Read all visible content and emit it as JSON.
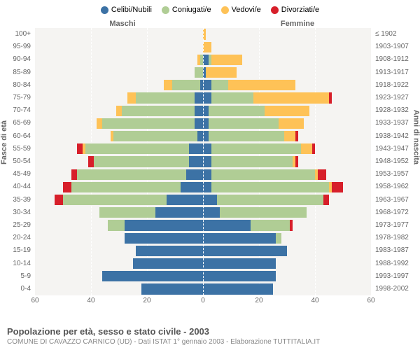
{
  "chart": {
    "type": "population-pyramid",
    "background_color": "#ffffff",
    "plot_bg": "#f5f4f2",
    "grid_color": "#ffffff",
    "font_family": "Arial",
    "x_max": 60,
    "x_tick_step": 20,
    "x_ticks": [
      60,
      40,
      20,
      0,
      20,
      40,
      60
    ],
    "legend": [
      {
        "label": "Celibi/Nubili",
        "color": "#3c72a5"
      },
      {
        "label": "Coniugati/e",
        "color": "#b0cd95"
      },
      {
        "label": "Vedovi/e",
        "color": "#fec257"
      },
      {
        "label": "Divorziati/e",
        "color": "#d71f2a"
      }
    ],
    "gender_labels": {
      "left": "Maschi",
      "right": "Femmine"
    },
    "y_left_title": "Fasce di età",
    "y_right_title": "Anni di nascita",
    "age_groups": [
      "0-4",
      "5-9",
      "10-14",
      "15-19",
      "20-24",
      "25-29",
      "30-34",
      "35-39",
      "40-44",
      "45-49",
      "50-54",
      "55-59",
      "60-64",
      "65-69",
      "70-74",
      "75-79",
      "80-84",
      "85-89",
      "90-94",
      "95-99",
      "100+"
    ],
    "birth_years": [
      "1998-2002",
      "1993-1997",
      "1988-1992",
      "1983-1987",
      "1978-1982",
      "1973-1977",
      "1968-1972",
      "1963-1967",
      "1958-1962",
      "1953-1957",
      "1948-1952",
      "1943-1947",
      "1938-1942",
      "1933-1937",
      "1928-1932",
      "1923-1927",
      "1918-1922",
      "1913-1917",
      "1908-1912",
      "1903-1907",
      "≤ 1902"
    ],
    "male": [
      {
        "s": 22,
        "m": 0,
        "w": 0,
        "d": 0
      },
      {
        "s": 36,
        "m": 0,
        "w": 0,
        "d": 0
      },
      {
        "s": 25,
        "m": 0,
        "w": 0,
        "d": 0
      },
      {
        "s": 24,
        "m": 0,
        "w": 0,
        "d": 0
      },
      {
        "s": 28,
        "m": 0,
        "w": 0,
        "d": 0
      },
      {
        "s": 28,
        "m": 6,
        "w": 0,
        "d": 0
      },
      {
        "s": 17,
        "m": 20,
        "w": 0,
        "d": 0
      },
      {
        "s": 13,
        "m": 37,
        "w": 0,
        "d": 3
      },
      {
        "s": 8,
        "m": 39,
        "w": 0,
        "d": 3
      },
      {
        "s": 6,
        "m": 39,
        "w": 0,
        "d": 2
      },
      {
        "s": 5,
        "m": 34,
        "w": 0,
        "d": 2
      },
      {
        "s": 5,
        "m": 37,
        "w": 1,
        "d": 2
      },
      {
        "s": 2,
        "m": 30,
        "w": 1,
        "d": 0
      },
      {
        "s": 3,
        "m": 33,
        "w": 2,
        "d": 0
      },
      {
        "s": 3,
        "m": 26,
        "w": 2,
        "d": 0
      },
      {
        "s": 3,
        "m": 21,
        "w": 3,
        "d": 0
      },
      {
        "s": 1,
        "m": 10,
        "w": 3,
        "d": 0
      },
      {
        "s": 0,
        "m": 3,
        "w": 0,
        "d": 0
      },
      {
        "s": 0,
        "m": 1,
        "w": 1,
        "d": 0
      },
      {
        "s": 0,
        "m": 0,
        "w": 0,
        "d": 0
      },
      {
        "s": 0,
        "m": 0,
        "w": 0,
        "d": 0
      }
    ],
    "female": [
      {
        "s": 25,
        "m": 0,
        "w": 0,
        "d": 0
      },
      {
        "s": 26,
        "m": 0,
        "w": 0,
        "d": 0
      },
      {
        "s": 26,
        "m": 0,
        "w": 0,
        "d": 0
      },
      {
        "s": 30,
        "m": 0,
        "w": 0,
        "d": 0
      },
      {
        "s": 26,
        "m": 2,
        "w": 0,
        "d": 0
      },
      {
        "s": 17,
        "m": 14,
        "w": 0,
        "d": 1
      },
      {
        "s": 6,
        "m": 31,
        "w": 0,
        "d": 0
      },
      {
        "s": 5,
        "m": 38,
        "w": 0,
        "d": 2
      },
      {
        "s": 3,
        "m": 42,
        "w": 1,
        "d": 4
      },
      {
        "s": 3,
        "m": 37,
        "w": 1,
        "d": 3
      },
      {
        "s": 3,
        "m": 29,
        "w": 1,
        "d": 1
      },
      {
        "s": 3,
        "m": 32,
        "w": 4,
        "d": 1
      },
      {
        "s": 2,
        "m": 27,
        "w": 4,
        "d": 1
      },
      {
        "s": 2,
        "m": 25,
        "w": 9,
        "d": 0
      },
      {
        "s": 2,
        "m": 20,
        "w": 16,
        "d": 0
      },
      {
        "s": 3,
        "m": 15,
        "w": 27,
        "d": 1
      },
      {
        "s": 3,
        "m": 6,
        "w": 24,
        "d": 0
      },
      {
        "s": 1,
        "m": 0,
        "w": 11,
        "d": 0
      },
      {
        "s": 2,
        "m": 1,
        "w": 11,
        "d": 0
      },
      {
        "s": 0,
        "m": 0,
        "w": 3,
        "d": 0
      },
      {
        "s": 0,
        "m": 0,
        "w": 1,
        "d": 0
      }
    ]
  },
  "title": "Popolazione per età, sesso e stato civile - 2003",
  "subtitle": "COMUNE DI CAVAZZO CARNICO (UD) - Dati ISTAT 1° gennaio 2003 - Elaborazione TUTTITALIA.IT"
}
